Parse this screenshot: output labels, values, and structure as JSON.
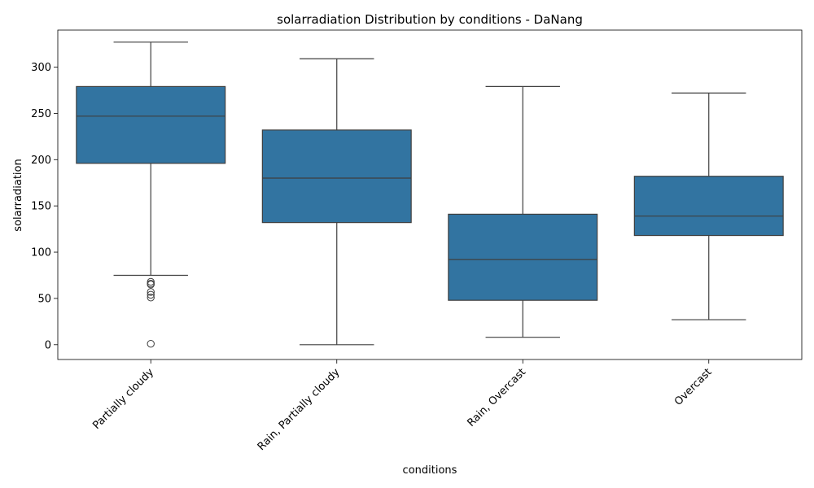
{
  "chart_data": {
    "type": "box",
    "title": "solarradiation Distribution by conditions - DaNang",
    "xlabel": "conditions",
    "ylabel": "solarradiation",
    "ylim": [
      -16,
      340
    ],
    "yticks": [
      0,
      50,
      100,
      150,
      200,
      250,
      300
    ],
    "categories": [
      "Partially cloudy",
      "Rain, Partially cloudy",
      "Rain, Overcast",
      "Overcast"
    ],
    "boxes": [
      {
        "whisker_low": 75,
        "q1": 196,
        "median": 247,
        "q3": 279,
        "whisker_high": 327,
        "outliers": [
          68,
          66,
          65,
          57,
          54,
          51,
          1
        ]
      },
      {
        "whisker_low": 0,
        "q1": 132,
        "median": 180,
        "q3": 232,
        "whisker_high": 309,
        "outliers": []
      },
      {
        "whisker_low": 8,
        "q1": 48,
        "median": 92,
        "q3": 141,
        "whisker_high": 279,
        "outliers": []
      },
      {
        "whisker_low": 27,
        "q1": 118,
        "median": 139,
        "q3": 182,
        "whisker_high": 272,
        "outliers": []
      }
    ],
    "box_color": "#3274a1",
    "line_color": "#3f3f3f",
    "grid": false,
    "legend": false
  }
}
